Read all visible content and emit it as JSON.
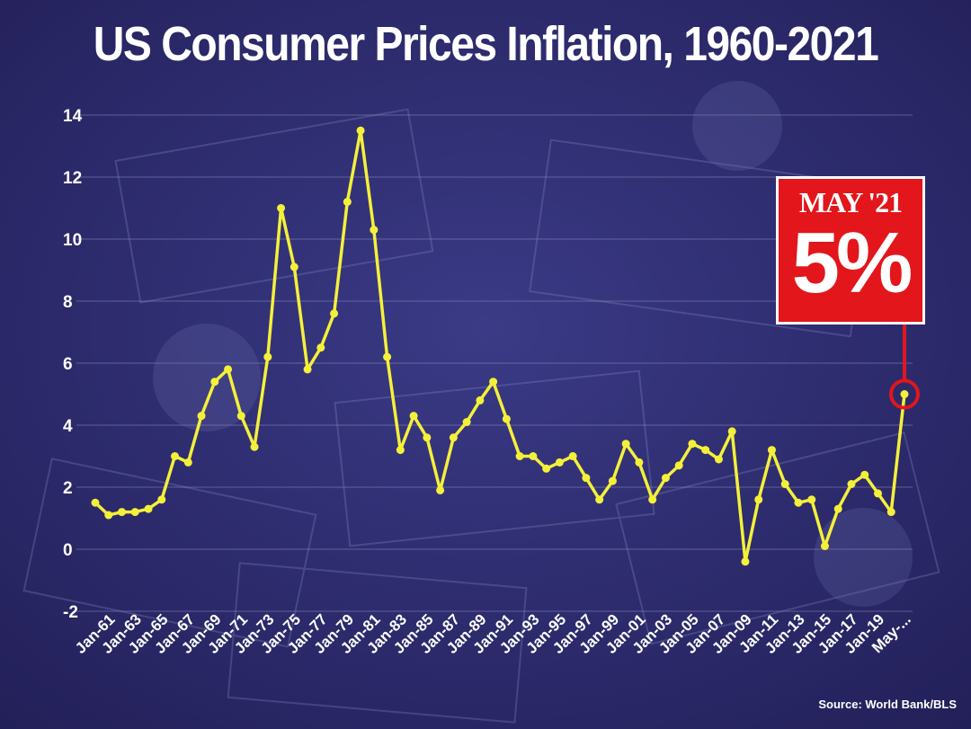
{
  "title": "US Consumer Prices Inflation, 1960-2021",
  "source": "Source: World Bank/BLS",
  "callout": {
    "label": "MAY '21",
    "value": "5%"
  },
  "colors": {
    "line": "#f4f03a",
    "callout_bg": "#e2161b",
    "background": "#2e2a6e",
    "grid": "#8d8bbd"
  },
  "chart_data": {
    "type": "line",
    "title": "US Consumer Prices Inflation, 1960-2021",
    "ylim": [
      -2,
      14
    ],
    "yticks": [
      -2,
      0,
      2,
      4,
      6,
      8,
      10,
      12,
      14
    ],
    "grid": true,
    "xtick_labels": [
      "Jan-61",
      "Jan-63",
      "Jan-65",
      "Jan-67",
      "Jan-69",
      "Jan-71",
      "Jan-73",
      "Jan-75",
      "Jan-77",
      "Jan-79",
      "Jan-81",
      "Jan-83",
      "Jan-85",
      "Jan-87",
      "Jan-89",
      "Jan-91",
      "Jan-93",
      "Jan-95",
      "Jan-97",
      "Jan-99",
      "Jan-01",
      "Jan-03",
      "Jan-05",
      "Jan-07",
      "Jan-09",
      "Jan-11",
      "Jan-13",
      "Jan-15",
      "Jan-17",
      "Jan-19",
      "May-..."
    ],
    "x": [
      1960,
      1961,
      1962,
      1963,
      1964,
      1965,
      1966,
      1967,
      1968,
      1969,
      1970,
      1971,
      1972,
      1973,
      1974,
      1975,
      1976,
      1977,
      1978,
      1979,
      1980,
      1981,
      1982,
      1983,
      1984,
      1985,
      1986,
      1987,
      1988,
      1989,
      1990,
      1991,
      1992,
      1993,
      1994,
      1995,
      1996,
      1997,
      1998,
      1999,
      2000,
      2001,
      2002,
      2003,
      2004,
      2005,
      2006,
      2007,
      2008,
      2009,
      2010,
      2011,
      2012,
      2013,
      2014,
      2015,
      2016,
      2017,
      2018,
      2019,
      2020,
      2021
    ],
    "values": [
      1.5,
      1.1,
      1.2,
      1.2,
      1.3,
      1.6,
      3.0,
      2.8,
      4.3,
      5.4,
      5.8,
      4.3,
      3.3,
      6.2,
      11.0,
      9.1,
      5.8,
      6.5,
      7.6,
      11.2,
      13.5,
      10.3,
      6.2,
      3.2,
      4.3,
      3.6,
      1.9,
      3.6,
      4.1,
      4.8,
      5.4,
      4.2,
      3.0,
      3.0,
      2.6,
      2.8,
      3.0,
      2.3,
      1.6,
      2.2,
      3.4,
      2.8,
      1.6,
      2.3,
      2.7,
      3.4,
      3.2,
      2.9,
      3.8,
      -0.4,
      1.6,
      3.2,
      2.1,
      1.5,
      1.6,
      0.1,
      1.3,
      2.1,
      2.4,
      1.8,
      1.2,
      5.0
    ]
  }
}
